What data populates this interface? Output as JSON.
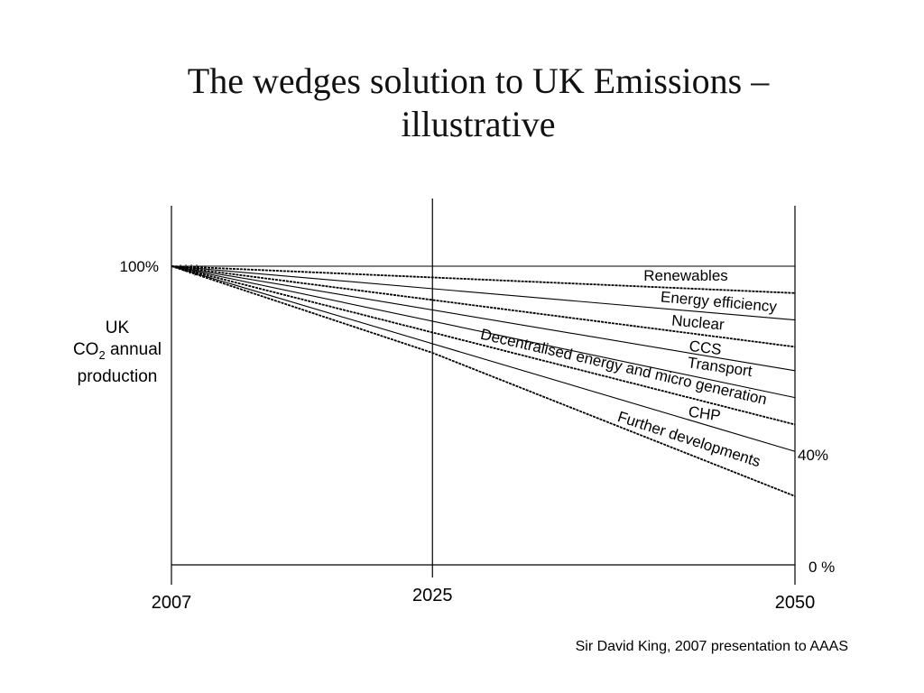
{
  "title_line1": "The wedges solution to UK Emissions –",
  "title_line2": "illustrative",
  "ylabel": {
    "line1": "UK",
    "line2_prefix": "CO",
    "line2_sub": "2",
    "line2_suffix": " annual",
    "line3": "production"
  },
  "source": "Sir David King, 2007 presentation to AAAS",
  "chart_data": {
    "type": "line",
    "x_ticks": [
      "2007",
      "2025",
      "2050"
    ],
    "x_range": [
      2007,
      2050
    ],
    "y_ticks": [
      "100%",
      "40%",
      "0 %"
    ],
    "y_range": [
      0,
      100
    ],
    "series": [
      {
        "name": "",
        "x": [
          2007,
          2050
        ],
        "y": [
          100,
          100
        ]
      },
      {
        "name": "Renewables",
        "x": [
          2007,
          2050
        ],
        "y": [
          100,
          91
        ],
        "dashed": true
      },
      {
        "name": "Energy efficiency",
        "x": [
          2007,
          2050
        ],
        "y": [
          100,
          82
        ]
      },
      {
        "name": "Nuclear",
        "x": [
          2007,
          2050
        ],
        "y": [
          100,
          73
        ],
        "dashed": true
      },
      {
        "name": "CCS",
        "x": [
          2007,
          2050
        ],
        "y": [
          100,
          65
        ]
      },
      {
        "name": "Transport",
        "x": [
          2007,
          2050
        ],
        "y": [
          100,
          56
        ]
      },
      {
        "name": "Decentralised energy and micro generation",
        "x": [
          2007,
          2050
        ],
        "y": [
          100,
          47
        ],
        "dashed": true
      },
      {
        "name": "CHP",
        "x": [
          2007,
          2050
        ],
        "y": [
          100,
          38
        ]
      },
      {
        "name": "Further developments",
        "x": [
          2007,
          2025,
          2050
        ],
        "y": [
          100,
          71,
          23
        ],
        "dashed": true
      }
    ],
    "grid": false,
    "legend": "none"
  }
}
